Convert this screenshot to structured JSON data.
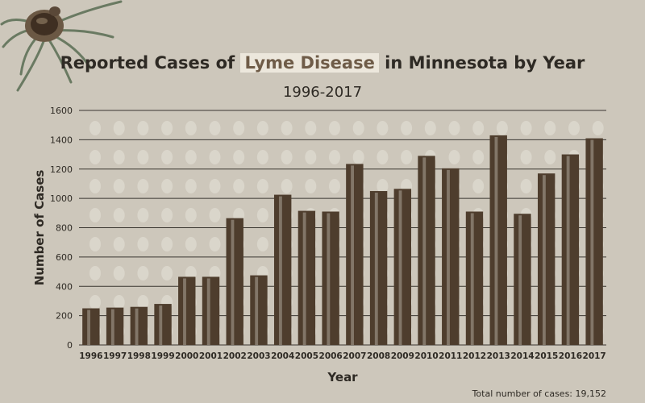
{
  "title": {
    "before": "Reported Cases of ",
    "highlight": "Lyme Disease",
    "after": " in Minnesota by Year"
  },
  "subtitle": "1996-2017",
  "footer": "Total number of cases: 19,152",
  "colors": {
    "background": "#cdc7bb",
    "bar": "#4e3d2d",
    "bar_highlight": "#a59c8f",
    "grid": "#3a3630",
    "title_highlight_bg": "#ece7dc",
    "title_highlight_text": "#6f5c48"
  },
  "decoration_icon": "tick-icon",
  "chart_data": {
    "type": "bar",
    "title": "Reported Cases of Lyme Disease in Minnesota by Year",
    "subtitle": "1996-2017",
    "xlabel": "Year",
    "ylabel": "Number of Cases",
    "ylim": [
      0,
      1600
    ],
    "yticks": [
      0,
      200,
      400,
      600,
      800,
      1000,
      1200,
      1400,
      1600
    ],
    "grid": true,
    "categories": [
      "1996",
      "1997",
      "1998",
      "1999",
      "2000",
      "2001",
      "2002",
      "2003",
      "2004",
      "2005",
      "2006",
      "2007",
      "2008",
      "2009",
      "2010",
      "2011",
      "2012",
      "2013",
      "2014",
      "2015",
      "2016",
      "2017"
    ],
    "values": [
      250,
      255,
      260,
      280,
      465,
      465,
      865,
      475,
      1025,
      915,
      910,
      1235,
      1050,
      1065,
      1290,
      1205,
      910,
      1430,
      895,
      1170,
      1300,
      1410
    ]
  }
}
